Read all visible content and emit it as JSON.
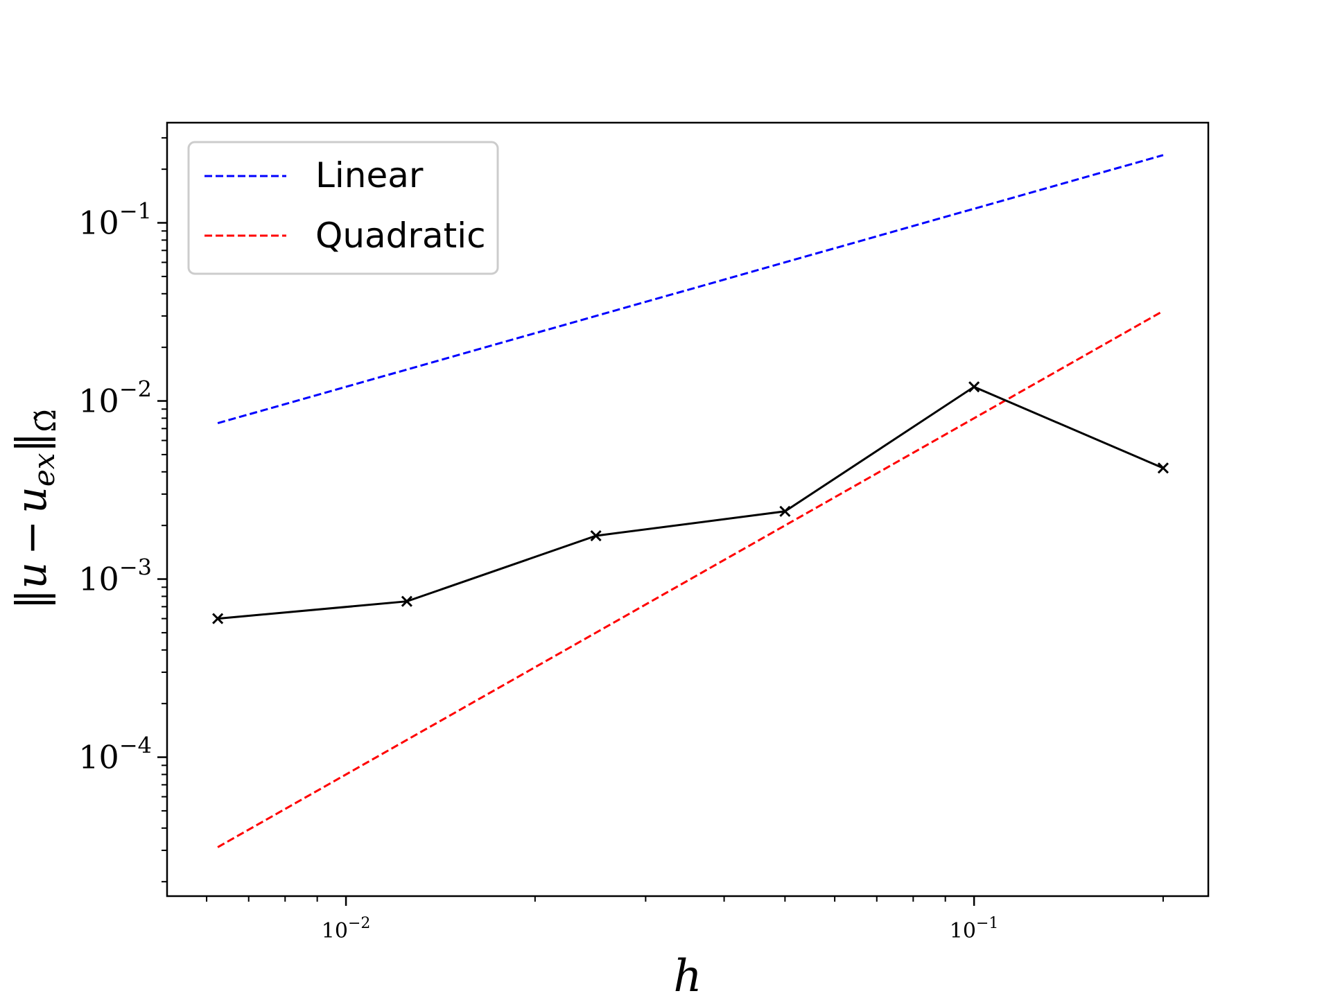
{
  "chart_data": {
    "type": "line",
    "title": "",
    "xlabel": "h",
    "ylabel": {
      "norm_left": "‖",
      "u": "u",
      "minus": "−",
      "u2": "u",
      "sub": "ex",
      "norm_right": "‖",
      "domain": "Ω̃"
    },
    "xscale": "log",
    "yscale": "log",
    "xlim": [
      0.00519,
      0.236
    ],
    "ylim": [
      1.66e-05,
      0.365
    ],
    "x_ticks": [
      {
        "value": 0.01,
        "base": "10",
        "exp": "−2"
      },
      {
        "value": 0.1,
        "base": "10",
        "exp": "−1"
      }
    ],
    "y_ticks": [
      {
        "value": 0.1,
        "base": "10",
        "exp": "−1"
      },
      {
        "value": 0.01,
        "base": "10",
        "exp": "−2"
      },
      {
        "value": 0.001,
        "base": "10",
        "exp": "−3"
      },
      {
        "value": 0.0001,
        "base": "10",
        "exp": "−4"
      }
    ],
    "grid": false,
    "legend_position": "top-left",
    "series": [
      {
        "name": "Linear",
        "color": "#0000ff",
        "style": "dashed",
        "x": [
          0.00625,
          0.2
        ],
        "y": [
          0.0075,
          0.24
        ]
      },
      {
        "name": "Quadratic",
        "color": "#ff0000",
        "style": "dashed",
        "x": [
          0.00625,
          0.2
        ],
        "y": [
          3.125e-05,
          0.032
        ]
      },
      {
        "name": "",
        "color": "#000000",
        "style": "solid",
        "marker": "x",
        "x": [
          0.00625,
          0.0125,
          0.025,
          0.05,
          0.1,
          0.2
        ],
        "y": [
          0.0006,
          0.00075,
          0.00175,
          0.0024,
          0.012,
          0.0042
        ]
      }
    ]
  }
}
